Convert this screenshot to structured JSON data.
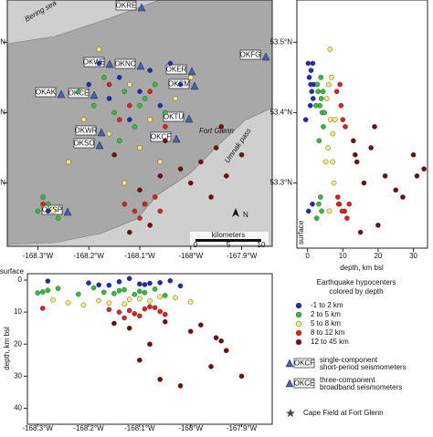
{
  "map": {
    "xlim": [
      -168.36,
      -167.84
    ],
    "ylim": [
      53.21,
      53.56
    ],
    "xticks": [
      {
        "value": -168.3,
        "label": "-168.3°W"
      },
      {
        "value": -168.2,
        "label": "-168.2°W"
      },
      {
        "value": -168.1,
        "label": "-168.1°W"
      },
      {
        "value": -168,
        "label": "-168°W"
      },
      {
        "value": -167.9,
        "label": "-167.9°W"
      }
    ],
    "yticks": [
      {
        "value": 53.3,
        "label": "53.3°N"
      },
      {
        "value": 53.4,
        "label": "53.4°N"
      },
      {
        "value": 53.5,
        "label": "53.5°N"
      }
    ],
    "labels": [
      "Bering sea",
      "Fort Glenn",
      "Umnak pass"
    ],
    "stations": [
      "OKRE",
      "OKWE",
      "OKNC",
      "OKER",
      "OKCM",
      "OKFG",
      "OKAK",
      "OKCE",
      "OKWR",
      "OKTU",
      "OKSO",
      "OKCF",
      "OKSP"
    ],
    "scale": {
      "title": "kilometers",
      "ticks": [
        0,
        5,
        10
      ]
    },
    "north": "N"
  },
  "lat_section": {
    "xlim": [
      -3,
      34
    ],
    "xticks": [
      0,
      10,
      20,
      30
    ],
    "xlabel": "depth, km bsl",
    "surface": "surface"
  },
  "lon_section": {
    "xlim": [
      -168.32,
      -167.84
    ],
    "ylim": [
      -2,
      45
    ],
    "yticks": [
      0,
      10,
      20,
      30,
      40
    ],
    "ylabel": "depth, km bsl",
    "surface": "surface"
  },
  "legend": {
    "title": [
      "Earthquake hypocenters",
      "colored by depth"
    ],
    "stations": [
      {
        "code": "OKCF",
        "text": [
          "single-component",
          "short-period seismometers"
        ]
      },
      {
        "code": "OKCE",
        "text": [
          "three-component",
          "broadband seismometers"
        ]
      }
    ],
    "star": "Cape Field at Fort Glenn"
  },
  "events": [
    {
      "name": "-1 to 2 km",
      "color": "#1f2bb5",
      "lon": [
        -168.14,
        -168.1,
        -168.06,
        -168.18,
        -168.12,
        -168.02,
        -168.28,
        -168.08,
        -168.16,
        -168.04,
        -168.09,
        -168.2
      ],
      "lat": [
        53.45,
        53.43,
        53.41,
        53.47,
        53.39,
        53.44,
        53.26,
        53.46,
        53.42,
        53.47,
        53.27,
        53.44
      ],
      "depth": [
        0.5,
        1.2,
        0.8,
        1.5,
        -0.5,
        1.8,
        0.3,
        1.0,
        1.6,
        0.2,
        1.4,
        0.9
      ]
    },
    {
      "name": "2 to 5 km",
      "color": "#2fbf3a",
      "lon": [
        -168.13,
        -168.1,
        -168.15,
        -168.07,
        -168.17,
        -168.11,
        -168.28,
        -168.3,
        -168.26,
        -168.09,
        -168.19,
        -168.05,
        -168.14,
        -168.22,
        -168.29
      ],
      "lat": [
        53.43,
        53.41,
        53.4,
        53.44,
        53.45,
        53.38,
        53.27,
        53.26,
        53.25,
        53.42,
        53.41,
        53.4,
        53.36,
        53.43,
        53.28
      ],
      "depth": [
        3.0,
        3.5,
        4.2,
        2.8,
        3.8,
        4.5,
        3.2,
        4.0,
        2.6,
        3.9,
        2.4,
        4.8,
        3.3,
        4.4,
        3.7
      ]
    },
    {
      "name": "5 to 8 km",
      "color": "#f2ee6a",
      "lon": [
        -168.12,
        -168.08,
        -168.16,
        -168.03,
        -168.21,
        -168.27,
        -168.1,
        -168.0,
        -168.24,
        -168.06,
        -168.18,
        -168.13
      ],
      "lat": [
        53.44,
        53.39,
        53.37,
        53.42,
        53.39,
        53.26,
        53.35,
        53.45,
        53.33,
        53.33,
        53.49,
        53.3
      ],
      "depth": [
        6.0,
        6.5,
        7.2,
        5.5,
        7.8,
        6.2,
        5.8,
        6.8,
        7.1,
        5.2,
        6.4,
        7.5
      ]
    },
    {
      "name": "8 to 12 km",
      "color": "#e0201a",
      "lon": [
        -168.09,
        -168.11,
        -168.07,
        -168.1,
        -168.12,
        -168.14,
        -168.08,
        -168.06,
        -168.13,
        -168.29,
        -168.05,
        -168.16
      ],
      "lat": [
        53.27,
        53.26,
        53.28,
        53.25,
        53.41,
        53.39,
        53.43,
        53.26,
        53.27,
        53.27,
        53.38,
        53.44
      ],
      "depth": [
        9.0,
        10.5,
        8.6,
        11.2,
        9.5,
        10.0,
        8.3,
        9.8,
        11.8,
        8.8,
        10.7,
        9.2
      ]
    },
    {
      "name": "12 to 45 km",
      "color": "#7a0a0a",
      "lon": [
        -167.98,
        -167.95,
        -167.93,
        -168.0,
        -167.96,
        -168.05,
        -168.08,
        -168.1,
        -167.9,
        -168.02,
        -168.12,
        -168.06,
        -167.94,
        -168.15
      ],
      "lat": [
        53.33,
        53.35,
        53.31,
        53.3,
        53.28,
        53.36,
        53.24,
        53.29,
        53.34,
        53.32,
        53.23,
        53.31,
        53.38,
        53.34
      ],
      "depth": [
        14,
        18,
        22,
        16,
        27,
        13,
        20,
        25,
        30,
        33,
        15,
        31,
        19,
        13.5
      ]
    }
  ]
}
